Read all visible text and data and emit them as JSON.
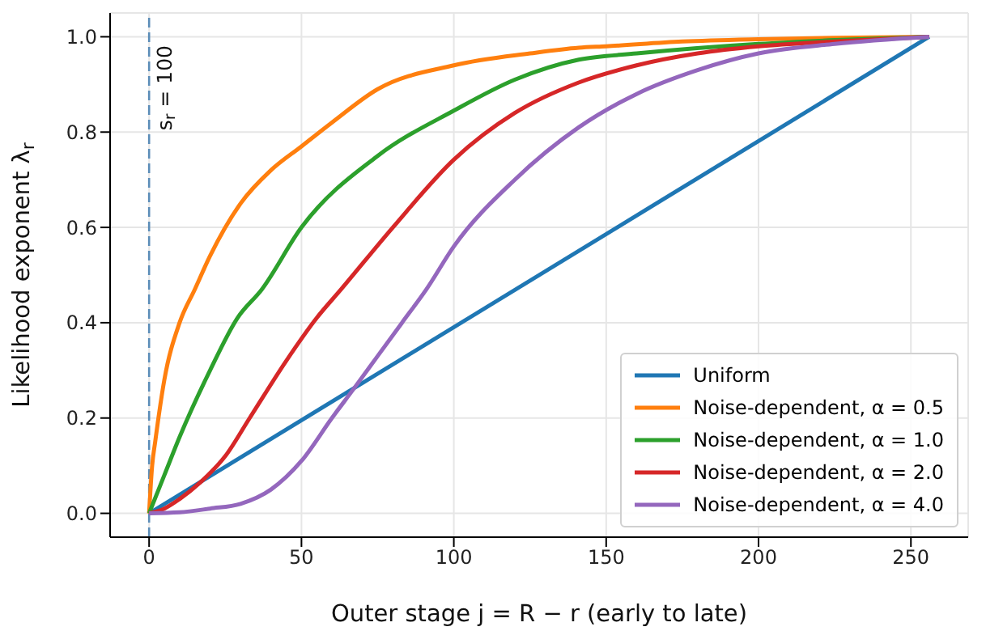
{
  "chart_data": {
    "type": "line",
    "xlabel": "Outer stage j = R − r (early to late)",
    "ylabel": "Likelihood exponent λ$_{r}$",
    "xlim": [
      -12.8,
      268.8
    ],
    "ylim": [
      -0.05,
      1.05
    ],
    "xticks": [
      0,
      50,
      100,
      150,
      200,
      250
    ],
    "yticks": [
      {
        "value": 0,
        "label": "0.0"
      },
      0.2,
      0.4,
      0.6,
      0.8,
      {
        "value": 1,
        "label": "1.0"
      }
    ],
    "annotations": [
      "s$_{r}$ = 100"
    ],
    "grid": true,
    "legend": "bottom right",
    "line_style": "solid",
    "marker": "none",
    "ref_lines": [
      {
        "axis": "x",
        "value": 0,
        "color": "#5b8db8",
        "line_style": "dashed"
      }
    ],
    "series": [
      {
        "name": "Uniform",
        "color": "#1f77b4",
        "x": [
          0,
          256
        ],
        "values": [
          0,
          1
        ]
      },
      {
        "name": "Noise-dependent, α = 0.5",
        "color": "#ff7f0e",
        "x": [
          0,
          1,
          2,
          5,
          10,
          15,
          20,
          30,
          40,
          50,
          60,
          75,
          100,
          125,
          141,
          150,
          175,
          200,
          225,
          256
        ],
        "values": [
          0,
          0.1,
          0.15,
          0.28,
          0.4,
          0.47,
          0.54,
          0.65,
          0.72,
          0.77,
          0.82,
          0.89,
          0.94,
          0.965,
          0.977,
          0.98,
          0.99,
          0.995,
          0.998,
          1
        ]
      },
      {
        "name": "Noise-dependent, α = 1.0",
        "color": "#2ca02c",
        "x": [
          0,
          5,
          10,
          20,
          29,
          37,
          50,
          75,
          100,
          120,
          141,
          160,
          200,
          225,
          256
        ],
        "values": [
          0,
          0.08,
          0.16,
          0.3,
          0.41,
          0.47,
          0.6,
          0.75,
          0.845,
          0.91,
          0.952,
          0.965,
          0.985,
          0.993,
          1
        ]
      },
      {
        "name": "Noise-dependent, α = 2.0",
        "color": "#d62728",
        "x": [
          0,
          5,
          10,
          17,
          25,
          33,
          45,
          55,
          63,
          80,
          100,
          120,
          141,
          160,
          180,
          200,
          225,
          256
        ],
        "values": [
          0,
          0.01,
          0.03,
          0.066,
          0.12,
          0.2,
          0.32,
          0.41,
          0.47,
          0.6,
          0.742,
          0.84,
          0.904,
          0.94,
          0.965,
          0.98,
          0.99,
          1
        ]
      },
      {
        "name": "Noise-dependent, α = 4.0",
        "color": "#9467bd",
        "x": [
          0,
          10,
          20,
          30,
          40,
          50,
          60,
          67,
          75,
          83,
          91,
          100,
          120,
          141,
          160,
          180,
          200,
          225,
          256
        ],
        "values": [
          0,
          0.002,
          0.01,
          0.02,
          0.05,
          0.11,
          0.2,
          0.26,
          0.33,
          0.4,
          0.47,
          0.56,
          0.7,
          0.81,
          0.88,
          0.93,
          0.965,
          0.985,
          1
        ]
      }
    ]
  }
}
